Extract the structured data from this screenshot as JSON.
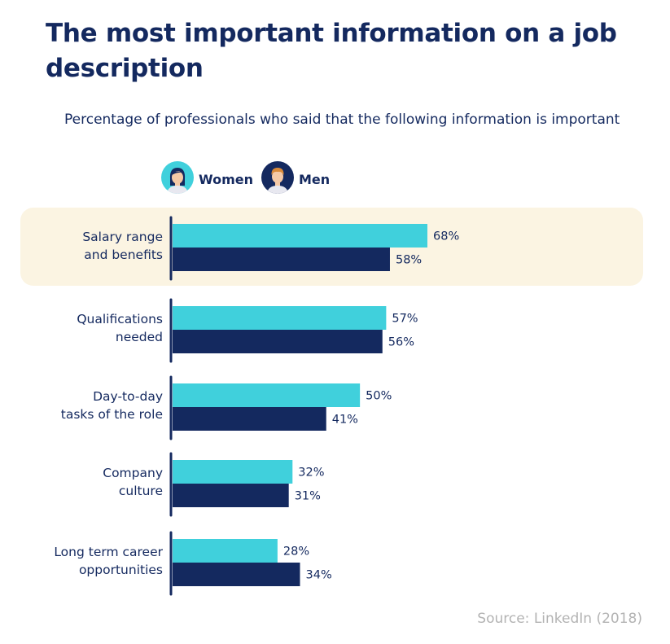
{
  "title": "The most important information on a job description",
  "subtitle": "Percentage of professionals who said that the following information is important",
  "source": "Source: LinkedIn (2018)",
  "colors": {
    "women": "#40d0dc",
    "men": "#14295f",
    "highlight": "#fbf4e2",
    "axis": "#14295f"
  },
  "legend": [
    {
      "label": "Women",
      "icon": "woman-avatar-icon"
    },
    {
      "label": "Men",
      "icon": "man-avatar-icon"
    }
  ],
  "chart_data": {
    "type": "bar",
    "orientation": "horizontal",
    "categories": [
      [
        "Salary range",
        "and benefits"
      ],
      [
        "Qualifications",
        "needed"
      ],
      [
        "Day-to-day",
        "tasks of the role"
      ],
      [
        "Company",
        "culture"
      ],
      [
        "Long term career",
        "opportunities"
      ]
    ],
    "series": [
      {
        "name": "Women",
        "values": [
          68,
          57,
          50,
          32,
          28
        ],
        "labels": [
          "68%",
          "57%",
          "50%",
          "32%",
          "28%"
        ]
      },
      {
        "name": "Men",
        "values": [
          58,
          56,
          41,
          31,
          34
        ],
        "labels": [
          "58%",
          "56%",
          "41%",
          "31%",
          "34%"
        ]
      }
    ],
    "highlighted_category": 0,
    "xlim": [
      0,
      68
    ],
    "grid": false,
    "legend_position": "top-left"
  }
}
